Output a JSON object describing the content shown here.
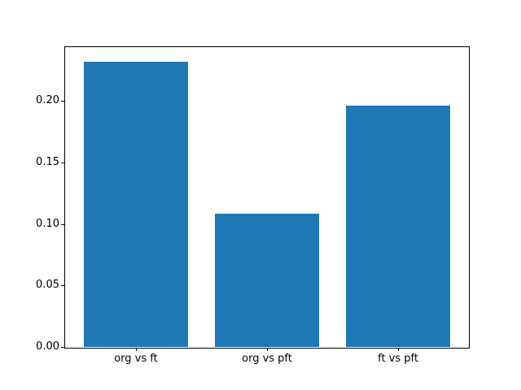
{
  "chart_data": {
    "type": "bar",
    "title": "",
    "xlabel": "",
    "ylabel": "",
    "categories": [
      "org vs ft",
      "org vs pft",
      "ft vs pft"
    ],
    "values": [
      0.232,
      0.108,
      0.196
    ],
    "bar_width": 0.8,
    "xlim": [
      -0.54,
      2.54
    ],
    "ylim": [
      0,
      0.2436
    ],
    "yticks": [
      0.0,
      0.05,
      0.1,
      0.15,
      0.2
    ],
    "ytick_labels": [
      "0.00",
      "0.05",
      "0.10",
      "0.15",
      "0.20"
    ],
    "grid": false,
    "legend": false,
    "bar_color": "#1f77b4",
    "axis_color": "#000000",
    "background_color": "#ffffff"
  }
}
